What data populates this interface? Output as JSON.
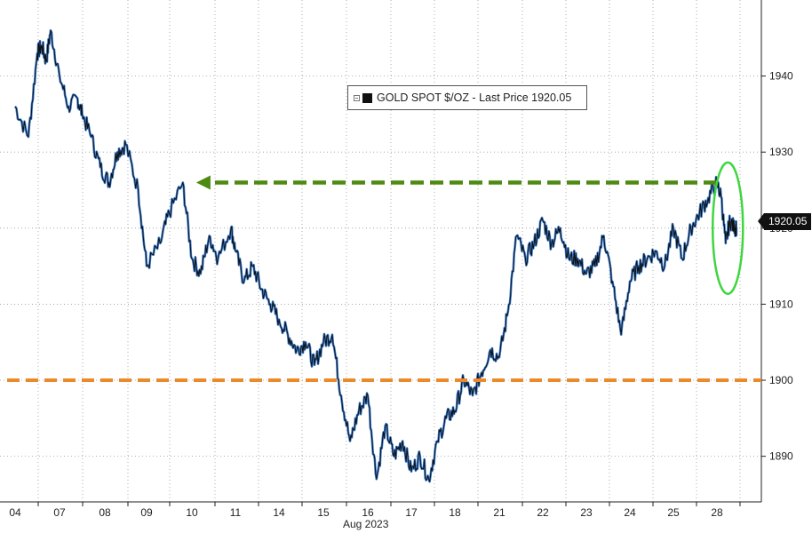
{
  "chart_data": {
    "type": "line",
    "title": "",
    "xlabel": "Aug 2023",
    "ylabel": "",
    "ylim": [
      1884,
      1950
    ],
    "y_ticks": [
      1890,
      1900,
      1910,
      1920,
      1930,
      1940
    ],
    "grid": true,
    "x_tick_labels": [
      "04",
      "07",
      "08",
      "09",
      "10",
      "11",
      "14",
      "15",
      "16",
      "17",
      "18",
      "21",
      "22",
      "23",
      "24",
      "25",
      "28"
    ],
    "legend": {
      "text": "GOLD SPOT $/OZ - Last Price 1920.05",
      "placement": "top-center",
      "color": "#111111"
    },
    "last_price_label": "1920.05",
    "series": [
      {
        "name": "GOLD SPOT $/OZ",
        "color": "#111111",
        "highlight_color": "#3a7fd5",
        "x": [
          0,
          0.3,
          0.5,
          0.6,
          0.7,
          0.8,
          1.0,
          1.2,
          1.4,
          1.5,
          1.7,
          1.9,
          2.1,
          2.3,
          2.5,
          2.8,
          3.0,
          3.3,
          3.5,
          3.8,
          4.0,
          4.2,
          4.4,
          4.6,
          4.9,
          5.0,
          5.2,
          5.4,
          5.6,
          5.8,
          6.0,
          6.2,
          6.4,
          6.6,
          6.8,
          7.0,
          7.2,
          7.4,
          7.6,
          7.8,
          8.0,
          8.2,
          8.4,
          8.6,
          8.8,
          9.0,
          9.2,
          9.4,
          9.6,
          9.8,
          10.0,
          10.2,
          10.4,
          10.6,
          10.8,
          11.0,
          11.2,
          11.4,
          11.6,
          11.8,
          12.0,
          12.2,
          12.4,
          12.6,
          12.8,
          13.0,
          13.2,
          13.4,
          13.6,
          13.8,
          14.0,
          14.2,
          14.4,
          14.6,
          14.8,
          15.0,
          15.2,
          15.4,
          15.6,
          15.8,
          16.0,
          16.1,
          16.2,
          16.3,
          16.4,
          16.45
        ],
        "values": [
          1936,
          1932,
          1943,
          1944,
          1942,
          1946,
          1940,
          1936,
          1937,
          1935,
          1932,
          1928,
          1926,
          1930,
          1931,
          1925,
          1915,
          1918,
          1922,
          1926,
          1916,
          1914,
          1919,
          1916,
          1920,
          1917,
          1913,
          1915,
          1912,
          1910,
          1908,
          1906,
          1904,
          1905,
          1902,
          1905,
          1906,
          1898,
          1892,
          1896,
          1898,
          1887,
          1894,
          1890,
          1892,
          1888,
          1890,
          1887,
          1892,
          1895,
          1896,
          1900,
          1898,
          1901,
          1904,
          1903,
          1909,
          1919,
          1916,
          1918,
          1921,
          1918,
          1920,
          1916,
          1916,
          1914,
          1915,
          1919,
          1913,
          1906,
          1913,
          1915,
          1916,
          1917,
          1915,
          1920,
          1916,
          1920,
          1922,
          1924,
          1926,
          1924,
          1918,
          1921,
          1920,
          1920.05
        ]
      }
    ],
    "annotations": [
      {
        "type": "horizontal-dashed",
        "value": 1900,
        "color": "#ec8a2a"
      },
      {
        "type": "arrow-dashed",
        "value": 1926,
        "from_x": 16.0,
        "to_x": 4.1,
        "color": "#4c8a10"
      },
      {
        "type": "ellipse",
        "x_center": 16.25,
        "y_center": 1920,
        "color": "#3fd63f"
      }
    ]
  }
}
